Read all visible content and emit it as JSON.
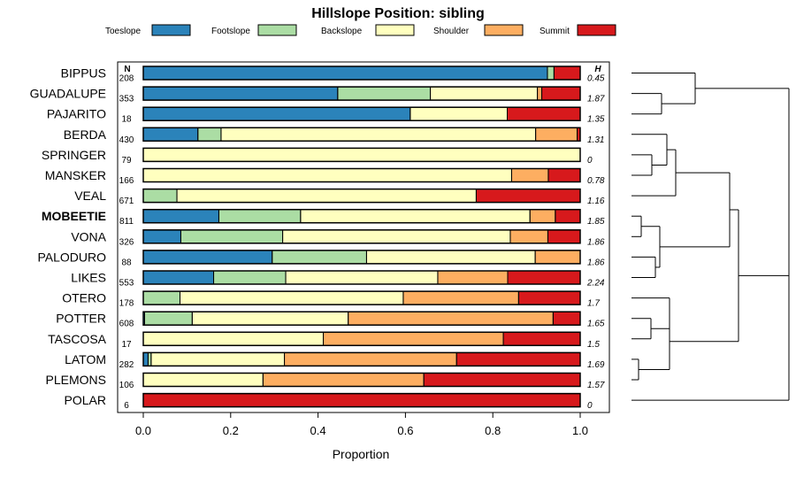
{
  "chart_data": {
    "type": "bar",
    "stacked": true,
    "orientation": "horizontal",
    "title": "Hillslope Position: sibling",
    "xlabel": "Proportion",
    "ylabel": "",
    "xlim": [
      0,
      1
    ],
    "xticks": [
      "0.0",
      "0.2",
      "0.4",
      "0.6",
      "0.8",
      "1.0"
    ],
    "xtick_values": [
      0,
      0.2,
      0.4,
      0.6,
      0.8,
      1.0
    ],
    "n_header": "N",
    "h_header": "H",
    "series": [
      {
        "name": "Toeslope",
        "color": "#2b83ba"
      },
      {
        "name": "Footslope",
        "color": "#abdda4"
      },
      {
        "name": "Backslope",
        "color": "#ffffbf"
      },
      {
        "name": "Shoulder",
        "color": "#fdae61"
      },
      {
        "name": "Summit",
        "color": "#d7191c"
      }
    ],
    "rows": [
      {
        "name": "BIPPUS",
        "n": "208",
        "h": "0.45",
        "bold": false,
        "values": [
          0.925,
          0.015,
          0.0,
          0.0,
          0.06
        ]
      },
      {
        "name": "GUADALUPE",
        "n": "353",
        "h": "1.87",
        "bold": false,
        "values": [
          0.445,
          0.212,
          0.245,
          0.01,
          0.088
        ]
      },
      {
        "name": "PAJARITO",
        "n": "18",
        "h": "1.35",
        "bold": false,
        "values": [
          0.611,
          0.0,
          0.222,
          0.0,
          0.167
        ]
      },
      {
        "name": "BERDA",
        "n": "430",
        "h": "1.31",
        "bold": false,
        "values": [
          0.125,
          0.053,
          0.72,
          0.095,
          0.007
        ]
      },
      {
        "name": "SPRINGER",
        "n": "79",
        "h": "0",
        "bold": false,
        "values": [
          0.0,
          0.0,
          1.0,
          0.0,
          0.0
        ]
      },
      {
        "name": "MANSKER",
        "n": "166",
        "h": "0.78",
        "bold": false,
        "values": [
          0.0,
          0.0,
          0.843,
          0.084,
          0.073
        ]
      },
      {
        "name": "VEAL",
        "n": "671",
        "h": "1.16",
        "bold": false,
        "values": [
          0.0,
          0.077,
          0.685,
          0.0,
          0.238
        ]
      },
      {
        "name": "MOBEETIE",
        "n": "811",
        "h": "1.85",
        "bold": true,
        "values": [
          0.173,
          0.187,
          0.525,
          0.058,
          0.057
        ]
      },
      {
        "name": "VONA",
        "n": "326",
        "h": "1.86",
        "bold": false,
        "values": [
          0.086,
          0.233,
          0.521,
          0.086,
          0.074
        ]
      },
      {
        "name": "PALODURO",
        "n": "88",
        "h": "1.86",
        "bold": false,
        "values": [
          0.295,
          0.216,
          0.386,
          0.103,
          0.0
        ]
      },
      {
        "name": "LIKES",
        "n": "553",
        "h": "2.24",
        "bold": false,
        "values": [
          0.161,
          0.165,
          0.348,
          0.16,
          0.166
        ]
      },
      {
        "name": "OTERO",
        "n": "178",
        "h": "1.7",
        "bold": false,
        "values": [
          0.0,
          0.084,
          0.511,
          0.264,
          0.141
        ]
      },
      {
        "name": "POTTER",
        "n": "608",
        "h": "1.65",
        "bold": false,
        "values": [
          0.003,
          0.109,
          0.357,
          0.469,
          0.062
        ]
      },
      {
        "name": "TASCOSA",
        "n": "17",
        "h": "1.5",
        "bold": false,
        "values": [
          0.0,
          0.0,
          0.412,
          0.412,
          0.176
        ]
      },
      {
        "name": "LATOM",
        "n": "282",
        "h": "1.69",
        "bold": false,
        "values": [
          0.011,
          0.007,
          0.305,
          0.394,
          0.283
        ]
      },
      {
        "name": "PLEMONS",
        "n": "106",
        "h": "1.57",
        "bold": false,
        "values": [
          0.0,
          0.0,
          0.274,
          0.368,
          0.358
        ]
      },
      {
        "name": "POLAR",
        "n": "6",
        "h": "0",
        "bold": false,
        "values": [
          0.0,
          0.0,
          0.0,
          0.0,
          1.0
        ]
      }
    ]
  }
}
